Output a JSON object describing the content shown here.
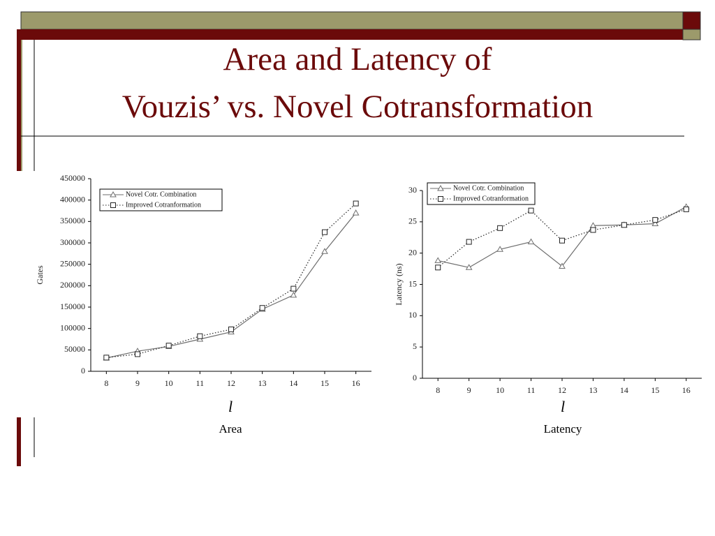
{
  "slide_title": [
    "Area and Latency of",
    "Vouzis’ vs. Novel Cotransformation"
  ],
  "chart_data": [
    {
      "type": "line",
      "ylabel": "Gates",
      "xlabel": "l",
      "caption": "Area",
      "x": [
        8,
        9,
        10,
        11,
        12,
        13,
        14,
        15,
        16
      ],
      "xlim": [
        7.5,
        16.5
      ],
      "xticks": [
        8,
        9,
        10,
        11,
        12,
        13,
        14,
        15,
        16
      ],
      "ylim": [
        0,
        450000
      ],
      "yticks": [
        0,
        50000,
        100000,
        150000,
        200000,
        250000,
        300000,
        350000,
        400000,
        450000
      ],
      "grid": false,
      "legend": "upper left",
      "series": [
        {
          "name": "Novel Cotr. Combination",
          "color": "#6e6e6e",
          "marker": "triangle",
          "line_style": "solid",
          "values": [
            31000,
            47000,
            58000,
            75000,
            92000,
            145000,
            178000,
            280000,
            370000
          ]
        },
        {
          "name": "Improved Cotranformation",
          "color": "#222222",
          "marker": "square",
          "line_style": "dotted",
          "values": [
            32000,
            40000,
            60000,
            82000,
            98000,
            148000,
            193000,
            325000,
            392000
          ]
        }
      ]
    },
    {
      "type": "line",
      "ylabel": "Latency (ns)",
      "xlabel": "l",
      "caption": "Latency",
      "x": [
        8,
        9,
        10,
        11,
        12,
        13,
        14,
        15,
        16
      ],
      "xlim": [
        7.5,
        16.5
      ],
      "xticks": [
        8,
        9,
        10,
        11,
        12,
        13,
        14,
        15,
        16
      ],
      "ylim": [
        0,
        30
      ],
      "yticks": [
        0,
        5,
        10,
        15,
        20,
        25,
        30
      ],
      "grid": false,
      "legend": "upper left",
      "series": [
        {
          "name": "Novel Cotr. Combination",
          "color": "#6e6e6e",
          "marker": "triangle",
          "line_style": "solid",
          "values": [
            18.8,
            17.7,
            20.6,
            21.8,
            17.9,
            24.4,
            24.5,
            24.7,
            27.4
          ]
        },
        {
          "name": "Improved Cotranformation",
          "color": "#222222",
          "marker": "square",
          "line_style": "dotted",
          "values": [
            17.7,
            21.8,
            24.0,
            26.8,
            22.0,
            23.7,
            24.5,
            25.3,
            27.0
          ]
        }
      ]
    }
  ]
}
